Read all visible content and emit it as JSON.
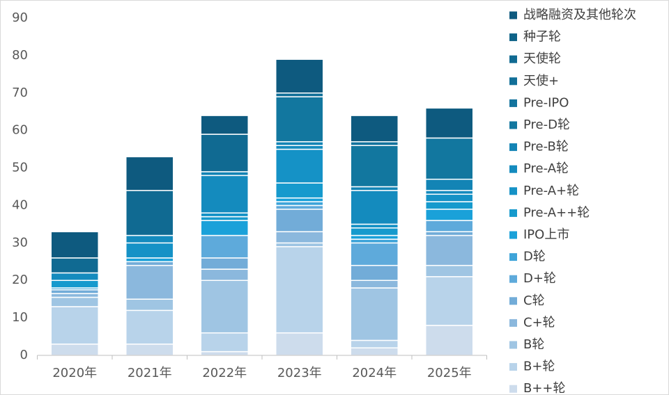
{
  "chart_data": {
    "type": "stacked_bar",
    "categories": [
      "2020年",
      "2021年",
      "2022年",
      "2023年",
      "2024年",
      "2025年"
    ],
    "ylim": [
      0,
      90
    ],
    "yticks": [
      0,
      10,
      20,
      30,
      40,
      50,
      60,
      70,
      80,
      90
    ],
    "grid": false,
    "legend_position": "right",
    "series": [
      {
        "name": "战略融资及其他轮次",
        "color": "#0e5a7f",
        "values": [
          7,
          9,
          5,
          9,
          7,
          8
        ]
      },
      {
        "name": "种子轮",
        "color": "#0e6388",
        "values": [
          0,
          0,
          0,
          0,
          0,
          0
        ]
      },
      {
        "name": "天使轮",
        "color": "#106a92",
        "values": [
          4,
          12,
          10,
          0,
          0,
          0
        ]
      },
      {
        "name": "天使+",
        "color": "#116f98",
        "values": [
          0,
          0,
          0,
          1,
          0,
          0
        ]
      },
      {
        "name": "Pre-IPO",
        "color": "#12739d",
        "values": [
          0,
          0,
          0,
          0,
          1,
          0
        ]
      },
      {
        "name": "Pre-D轮",
        "color": "#12779f",
        "values": [
          0,
          0,
          0,
          12,
          11,
          11
        ]
      },
      {
        "name": "Pre-B轮",
        "color": "#1384b5",
        "values": [
          0,
          0,
          1,
          1,
          1,
          3
        ]
      },
      {
        "name": "Pre-A轮",
        "color": "#148bbe",
        "values": [
          2,
          2,
          10,
          1,
          9,
          1
        ]
      },
      {
        "name": "Pre-A+轮",
        "color": "#1592c6",
        "values": [
          0,
          4,
          1,
          9,
          1,
          2
        ]
      },
      {
        "name": "Pre-A++轮",
        "color": "#169acd",
        "values": [
          2,
          0,
          1,
          4,
          2,
          2
        ]
      },
      {
        "name": "IPO上市",
        "color": "#1aa1d9",
        "values": [
          0,
          1,
          4,
          1,
          1,
          3
        ]
      },
      {
        "name": "D轮",
        "color": "#3ea4d9",
        "values": [
          0.5,
          0,
          0,
          1,
          1,
          0
        ]
      },
      {
        "name": "D+轮",
        "color": "#5eaadb",
        "values": [
          0,
          0,
          6,
          1,
          6,
          3
        ]
      },
      {
        "name": "C轮",
        "color": "#72acd8",
        "values": [
          1,
          1,
          3,
          6,
          4,
          1
        ]
      },
      {
        "name": "C+轮",
        "color": "#8bb8dd",
        "values": [
          1,
          9,
          3,
          3,
          2,
          8
        ]
      },
      {
        "name": "B轮",
        "color": "#9fc5e3",
        "values": [
          2.5,
          3,
          14,
          1,
          14,
          3
        ]
      },
      {
        "name": "B+轮",
        "color": "#b8d3ea",
        "values": [
          10,
          9,
          5,
          23,
          2,
          13
        ]
      },
      {
        "name": "B++轮",
        "color": "#cddcec",
        "values": [
          3,
          3,
          1,
          6,
          2,
          8
        ]
      }
    ]
  }
}
